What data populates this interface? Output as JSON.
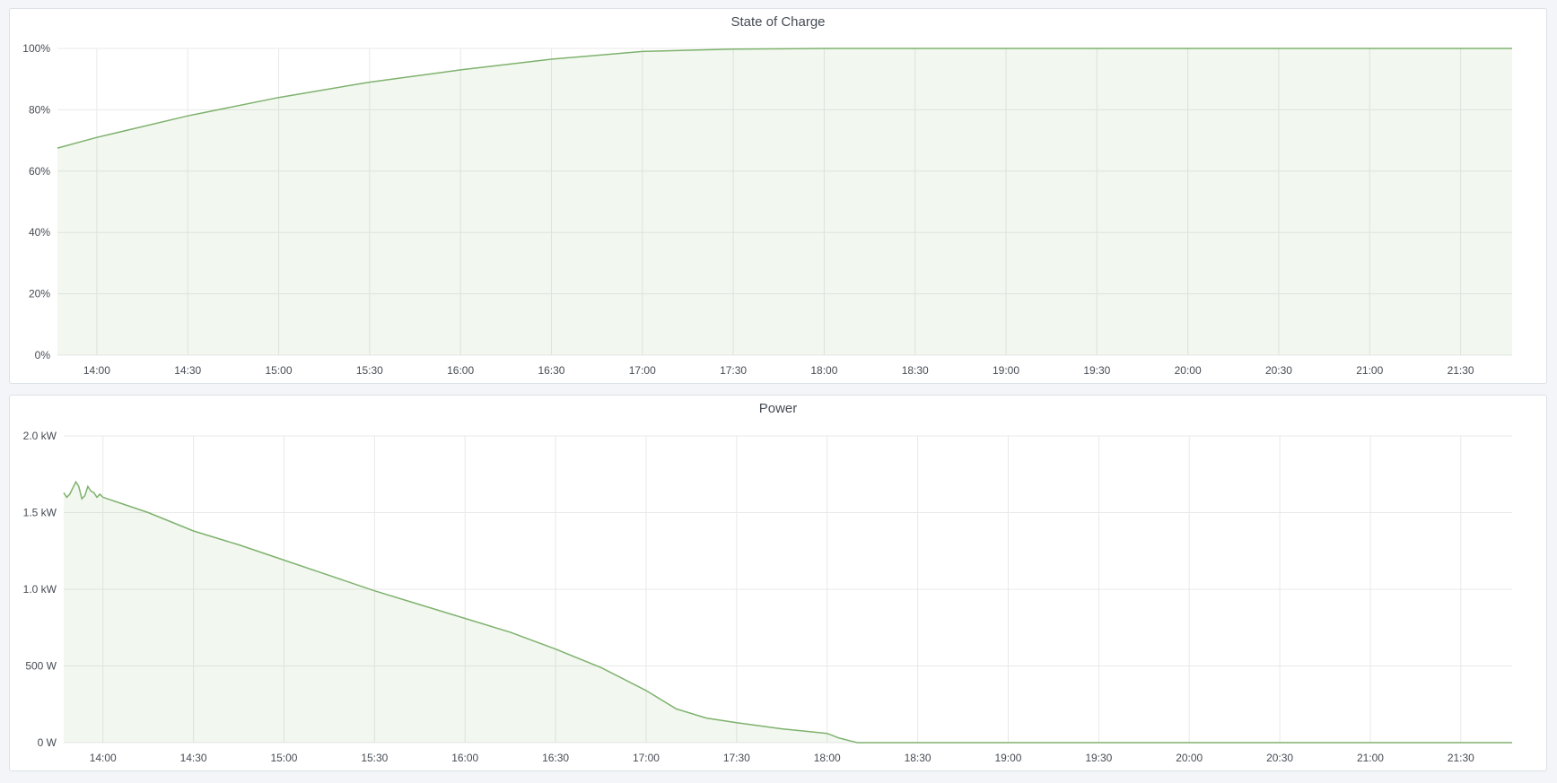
{
  "colors": {
    "line": "#7eb26d",
    "fill": "rgba(126,178,109,0.1)",
    "grid": "#e9e9e9",
    "background": "#f4f5f8"
  },
  "chart_data": [
    {
      "type": "area",
      "title": "State of Charge",
      "x_range": [
        "13:47",
        "21:47"
      ],
      "x_ticks": [
        "14:00",
        "14:30",
        "15:00",
        "15:30",
        "16:00",
        "16:30",
        "17:00",
        "17:30",
        "18:00",
        "18:30",
        "19:00",
        "19:30",
        "20:00",
        "20:30",
        "21:00",
        "21:30"
      ],
      "ylim": [
        0,
        100
      ],
      "y_ticks": [
        0,
        20,
        40,
        60,
        80,
        100
      ],
      "y_tick_labels": [
        "0%",
        "20%",
        "40%",
        "60%",
        "80%",
        "100%"
      ],
      "grid": true,
      "x": [
        "13:47",
        "14:00",
        "14:30",
        "15:00",
        "15:30",
        "16:00",
        "16:30",
        "17:00",
        "17:30",
        "18:00",
        "18:30",
        "21:47"
      ],
      "values": [
        67.5,
        71,
        78,
        84,
        89,
        93,
        96.5,
        99,
        99.8,
        100,
        100,
        100
      ]
    },
    {
      "type": "area",
      "title": "Power",
      "x_range": [
        "13:47",
        "21:47"
      ],
      "x_ticks": [
        "14:00",
        "14:30",
        "15:00",
        "15:30",
        "16:00",
        "16:30",
        "17:00",
        "17:30",
        "18:00",
        "18:30",
        "19:00",
        "19:30",
        "20:00",
        "20:30",
        "21:00",
        "21:30"
      ],
      "ylim": [
        0,
        2000
      ],
      "y_ticks": [
        0,
        500,
        1000,
        1500,
        2000
      ],
      "y_tick_labels": [
        "0 W",
        "500 W",
        "1.0 kW",
        "1.5 kW",
        "2.0 kW"
      ],
      "grid": true,
      "x": [
        "13:47",
        "13:48",
        "13:49",
        "13:50",
        "13:51",
        "13:52",
        "13:53",
        "13:54",
        "13:55",
        "13:56",
        "13:57",
        "13:58",
        "13:59",
        "14:00",
        "14:15",
        "14:30",
        "14:45",
        "15:00",
        "15:15",
        "15:30",
        "15:45",
        "16:00",
        "16:15",
        "16:30",
        "16:45",
        "17:00",
        "17:10",
        "17:20",
        "17:30",
        "17:45",
        "18:00",
        "18:04",
        "18:08",
        "18:10",
        "21:47"
      ],
      "values": [
        1630,
        1600,
        1620,
        1660,
        1700,
        1670,
        1590,
        1610,
        1670,
        1640,
        1630,
        1600,
        1620,
        1600,
        1500,
        1380,
        1290,
        1190,
        1090,
        990,
        900,
        810,
        720,
        610,
        490,
        340,
        220,
        160,
        130,
        90,
        60,
        30,
        10,
        0,
        0
      ]
    }
  ]
}
